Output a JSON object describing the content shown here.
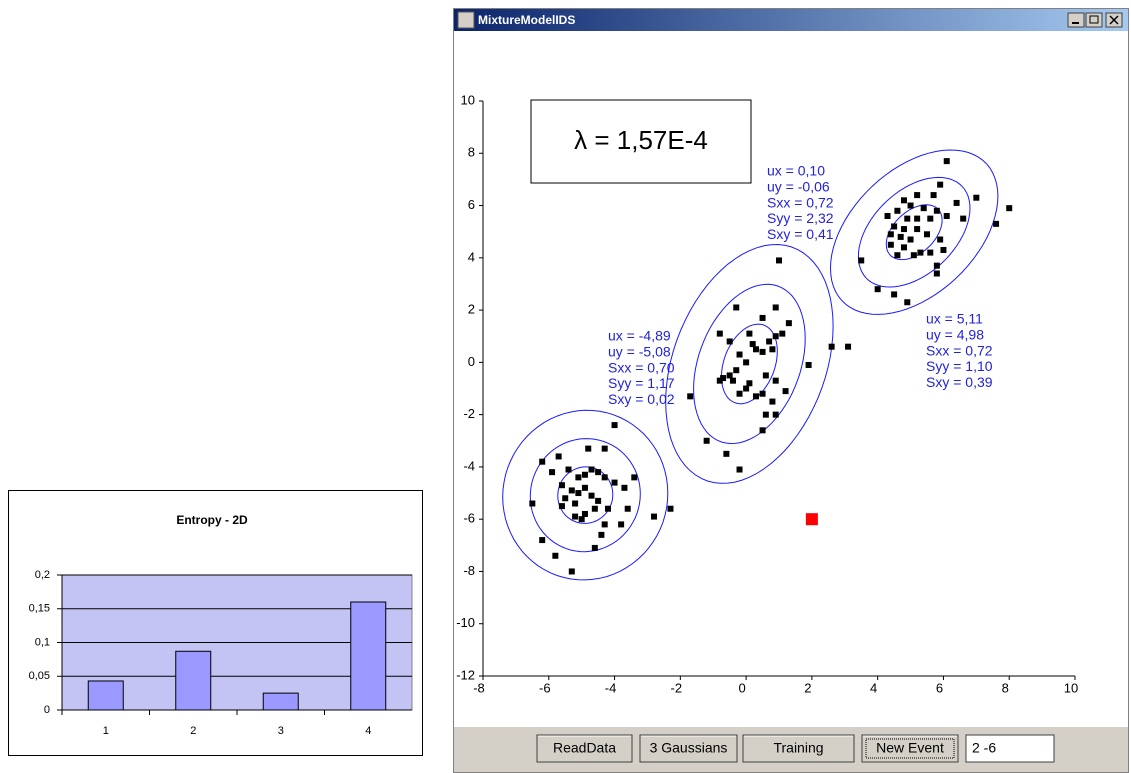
{
  "chart_data": [
    {
      "type": "bar",
      "title": "Entropy - 2D",
      "categories": [
        "1",
        "2",
        "3",
        "4"
      ],
      "values": [
        0.043,
        0.087,
        0.025,
        0.16
      ],
      "color": "#9999ff",
      "ylim": [
        0,
        0.2
      ],
      "yticks": [
        {
          "value": 0,
          "label": "0"
        },
        {
          "value": 0.05,
          "label": "0,05"
        },
        {
          "value": 0.1,
          "label": "0,1"
        },
        {
          "value": 0.15,
          "label": "0,15"
        },
        {
          "value": 0.2,
          "label": "0,2"
        }
      ],
      "grid": true
    },
    {
      "type": "scatter",
      "annotation": "λ = 1,57E-4",
      "xlim": [
        -8,
        10
      ],
      "xticks": [
        -8,
        -6,
        -4,
        -2,
        0,
        2,
        4,
        6,
        8,
        10
      ],
      "ylim": [
        -12,
        10
      ],
      "yticks": [
        -12,
        -10,
        -8,
        -6,
        -4,
        -2,
        0,
        2,
        4,
        6,
        8,
        10
      ],
      "series": [
        {
          "color": "#000000",
          "x": [
            -6.5,
            -6.2,
            -5.8,
            -5.3,
            -4.6,
            -4.4,
            -4.3,
            -4.2,
            -3.8,
            -3.4,
            -2.8,
            -2.3,
            -4,
            -4.3,
            -4.8,
            -5.7,
            -6.2,
            -5.9,
            -5.4,
            -5.1,
            -4.9,
            -4.7,
            -4.5,
            -4.3,
            -4,
            -3.7,
            -5.6,
            -5.3,
            -5.1,
            -4.9,
            -4.7,
            -4.5,
            -5.5,
            -5.2,
            -4.6,
            -4.9,
            -5.2,
            -5,
            -3.6,
            -5.6,
            1,
            -0.3,
            0.9,
            0.5,
            1.3,
            -0.8,
            0.1,
            0.9,
            1.1,
            -0.5,
            0.2,
            0.7,
            0.3,
            0.5,
            0.8,
            -0.2,
            0,
            2.6,
            1.9,
            -0.3,
            -0.5,
            -0.7,
            -0.4,
            0.6,
            0.9,
            -0.8,
            0,
            0.3,
            0.5,
            1.2,
            -1.7,
            0.8,
            0.6,
            0.9,
            0.5,
            -1.2,
            -0.6,
            -0.2,
            0.1,
            -0.2,
            3.1,
            6.1,
            5.9,
            4.8,
            5.2,
            5.7,
            6.4,
            7,
            4.6,
            5,
            5.4,
            5.8,
            4.3,
            4.9,
            5.2,
            5.6,
            6.1,
            6.6,
            7.6,
            8,
            4.5,
            4.8,
            5.2,
            4.4,
            4.7,
            5,
            5.5,
            5.9,
            4.4,
            4.8,
            5.3,
            5.6,
            4.6,
            5.1,
            6,
            3.5,
            5.8,
            5.8,
            4,
            4.5,
            4.9
          ],
          "values": [
            -5.4,
            -6.8,
            -7.4,
            -8,
            -7.1,
            -6.6,
            -6.2,
            -5.6,
            -6.2,
            -4.4,
            -5.9,
            -5.6,
            -2.4,
            -3.3,
            -3.3,
            -3.6,
            -3.8,
            -4.2,
            -4.1,
            -4.4,
            -4.3,
            -4.1,
            -4.2,
            -4.4,
            -4.6,
            -4.8,
            -4.7,
            -4.9,
            -5,
            -4.8,
            -5.1,
            -5.3,
            -5.2,
            -5.4,
            -5.6,
            -5.8,
            -5.9,
            -6,
            -5.6,
            -5.5,
            3.9,
            2.1,
            2.1,
            1.7,
            1.5,
            1.1,
            1.1,
            1,
            1.1,
            0.8,
            0.7,
            0.8,
            0.5,
            0.4,
            0.5,
            0.3,
            0,
            0.6,
            -0.1,
            -0.3,
            -0.5,
            -0.6,
            -0.7,
            -0.5,
            -0.7,
            -0.7,
            -1,
            -1.3,
            -1.2,
            -1.1,
            -1.3,
            -1.5,
            -2,
            -2,
            -2.6,
            -3,
            -3.5,
            -4.1,
            -0.8,
            -1.2,
            0.6,
            7.7,
            6.8,
            6.2,
            6.4,
            6.4,
            6.1,
            6.3,
            5.8,
            6,
            5.9,
            5.8,
            5.6,
            5.5,
            5.5,
            5.5,
            5.6,
            5.5,
            5.3,
            5.9,
            5.2,
            5.1,
            5.1,
            4.9,
            4.8,
            4.7,
            4.9,
            4.7,
            4.5,
            4.4,
            4.2,
            4.2,
            4.1,
            4.1,
            4.3,
            3.9,
            3.7,
            3.4,
            2.8,
            2.6,
            2.3
          ]
        },
        {
          "color": "#ff0000",
          "x": [
            2
          ],
          "values": [
            -6
          ]
        }
      ],
      "gaussians": [
        {
          "ux": -4.89,
          "uy": -5.08,
          "sxx": 0.7,
          "syy": 1.17,
          "sxy": 0.02,
          "labels": [
            "ux = -4,89",
            "uy = -5,08",
            "Sxx = 0,70",
            "Syy = 1,17",
            "Sxy = 0,02"
          ]
        },
        {
          "ux": 0.1,
          "uy": -0.06,
          "sxx": 0.72,
          "syy": 2.32,
          "sxy": 0.41,
          "labels": [
            "ux = 0,10",
            "uy = -0,06",
            "Sxx = 0,72",
            "Syy = 2,32",
            "Sxy = 0,41"
          ]
        },
        {
          "ux": 5.11,
          "uy": 4.98,
          "sxx": 0.72,
          "syy": 1.1,
          "sxy": 0.39,
          "labels": [
            "ux = 5,11",
            "uy = 4,98",
            "Sxx = 0,72",
            "Syy = 1,10",
            "Sxy = 0,39"
          ]
        }
      ]
    }
  ],
  "window": {
    "title": "MixtureModelIDS",
    "buttons": [
      "ReadData",
      "3 Gaussians",
      "Training",
      "New Event"
    ],
    "input": "2 -6"
  }
}
